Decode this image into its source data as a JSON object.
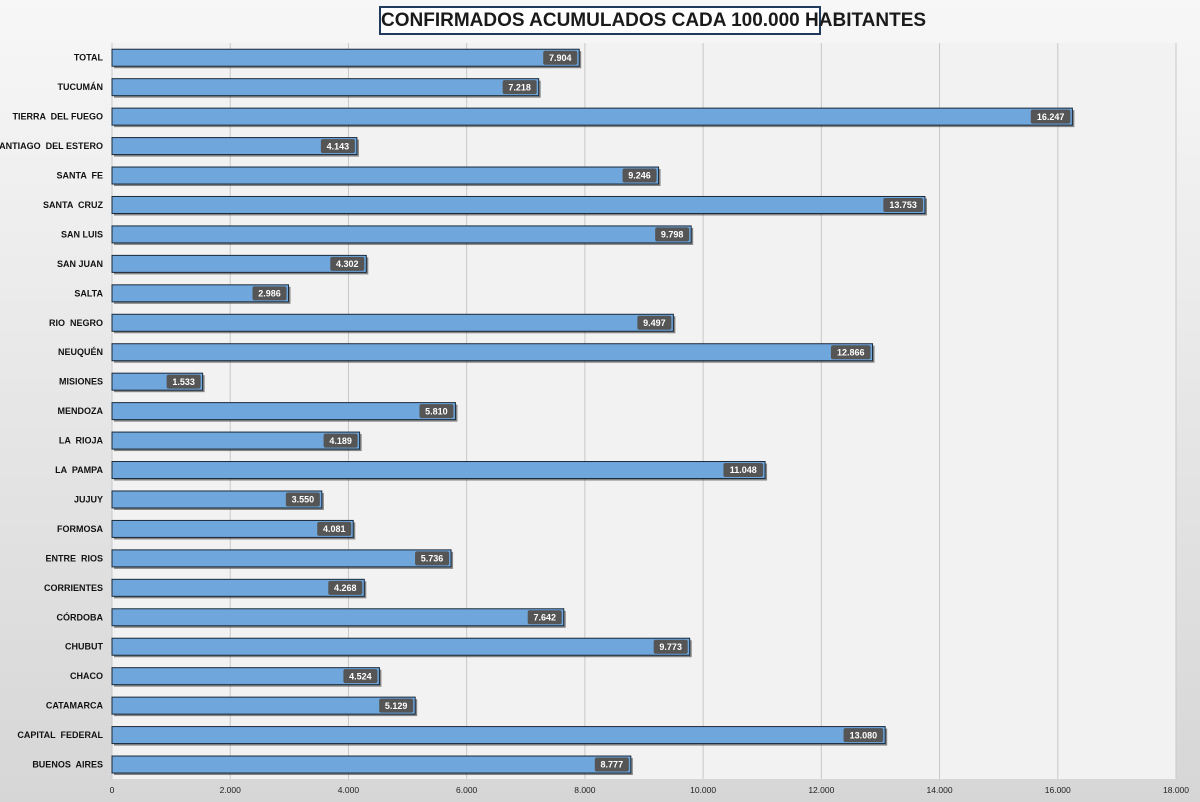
{
  "chart_data": {
    "type": "bar",
    "orientation": "horizontal",
    "title": "CONFIRMADOS ACUMULADOS CADA 100.000 HABITANTES",
    "categories": [
      "TOTAL",
      "TUCUMÁN",
      "TIERRA  DEL FUEGO",
      "SANTIAGO  DEL ESTERO",
      "SANTA  FE",
      "SANTA  CRUZ",
      "SAN LUIS",
      "SAN JUAN",
      "SALTA",
      "RIO  NEGRO",
      "NEUQUÉN",
      "MISIONES",
      "MENDOZA",
      "LA  RIOJA",
      "LA  PAMPA",
      "JUJUY",
      "FORMOSA",
      "ENTRE  RIOS",
      "CORRIENTES",
      "CÓRDOBA",
      "CHUBUT",
      "CHACO",
      "CATAMARCA",
      "CAPITAL  FEDERAL",
      "BUENOS  AIRES"
    ],
    "values": [
      7904,
      7218,
      16247,
      4143,
      9246,
      13753,
      9798,
      4302,
      2986,
      9497,
      12866,
      1533,
      5810,
      4189,
      11048,
      3550,
      4081,
      5736,
      4268,
      7642,
      9773,
      4524,
      5129,
      13080,
      8777
    ],
    "value_labels": [
      "7.904",
      "7.218",
      "16.247",
      "4.143",
      "9.246",
      "13.753",
      "9.798",
      "4.302",
      "2.986",
      "9.497",
      "12.866",
      "1.533",
      "5.810",
      "4.189",
      "11.048",
      "3.550",
      "4.081",
      "5.736",
      "4.268",
      "7.642",
      "9.773",
      "4.524",
      "5.129",
      "13.080",
      "8.777"
    ],
    "x_ticks": [
      0,
      2000,
      4000,
      6000,
      8000,
      10000,
      12000,
      14000,
      16000,
      18000
    ],
    "x_tick_labels": [
      "0",
      "2.000",
      "4.000",
      "6.000",
      "8.000",
      "10.000",
      "12.000",
      "14.000",
      "16.000",
      "18.000"
    ],
    "xlim": [
      0,
      18000
    ],
    "grid": true,
    "colors": {
      "bar": "#6fa6dc",
      "bar_border": "#1a2a3a",
      "label_bg": "#555555",
      "grid": "#c8c8c8",
      "plot_bg": "#f2f2f2"
    }
  }
}
